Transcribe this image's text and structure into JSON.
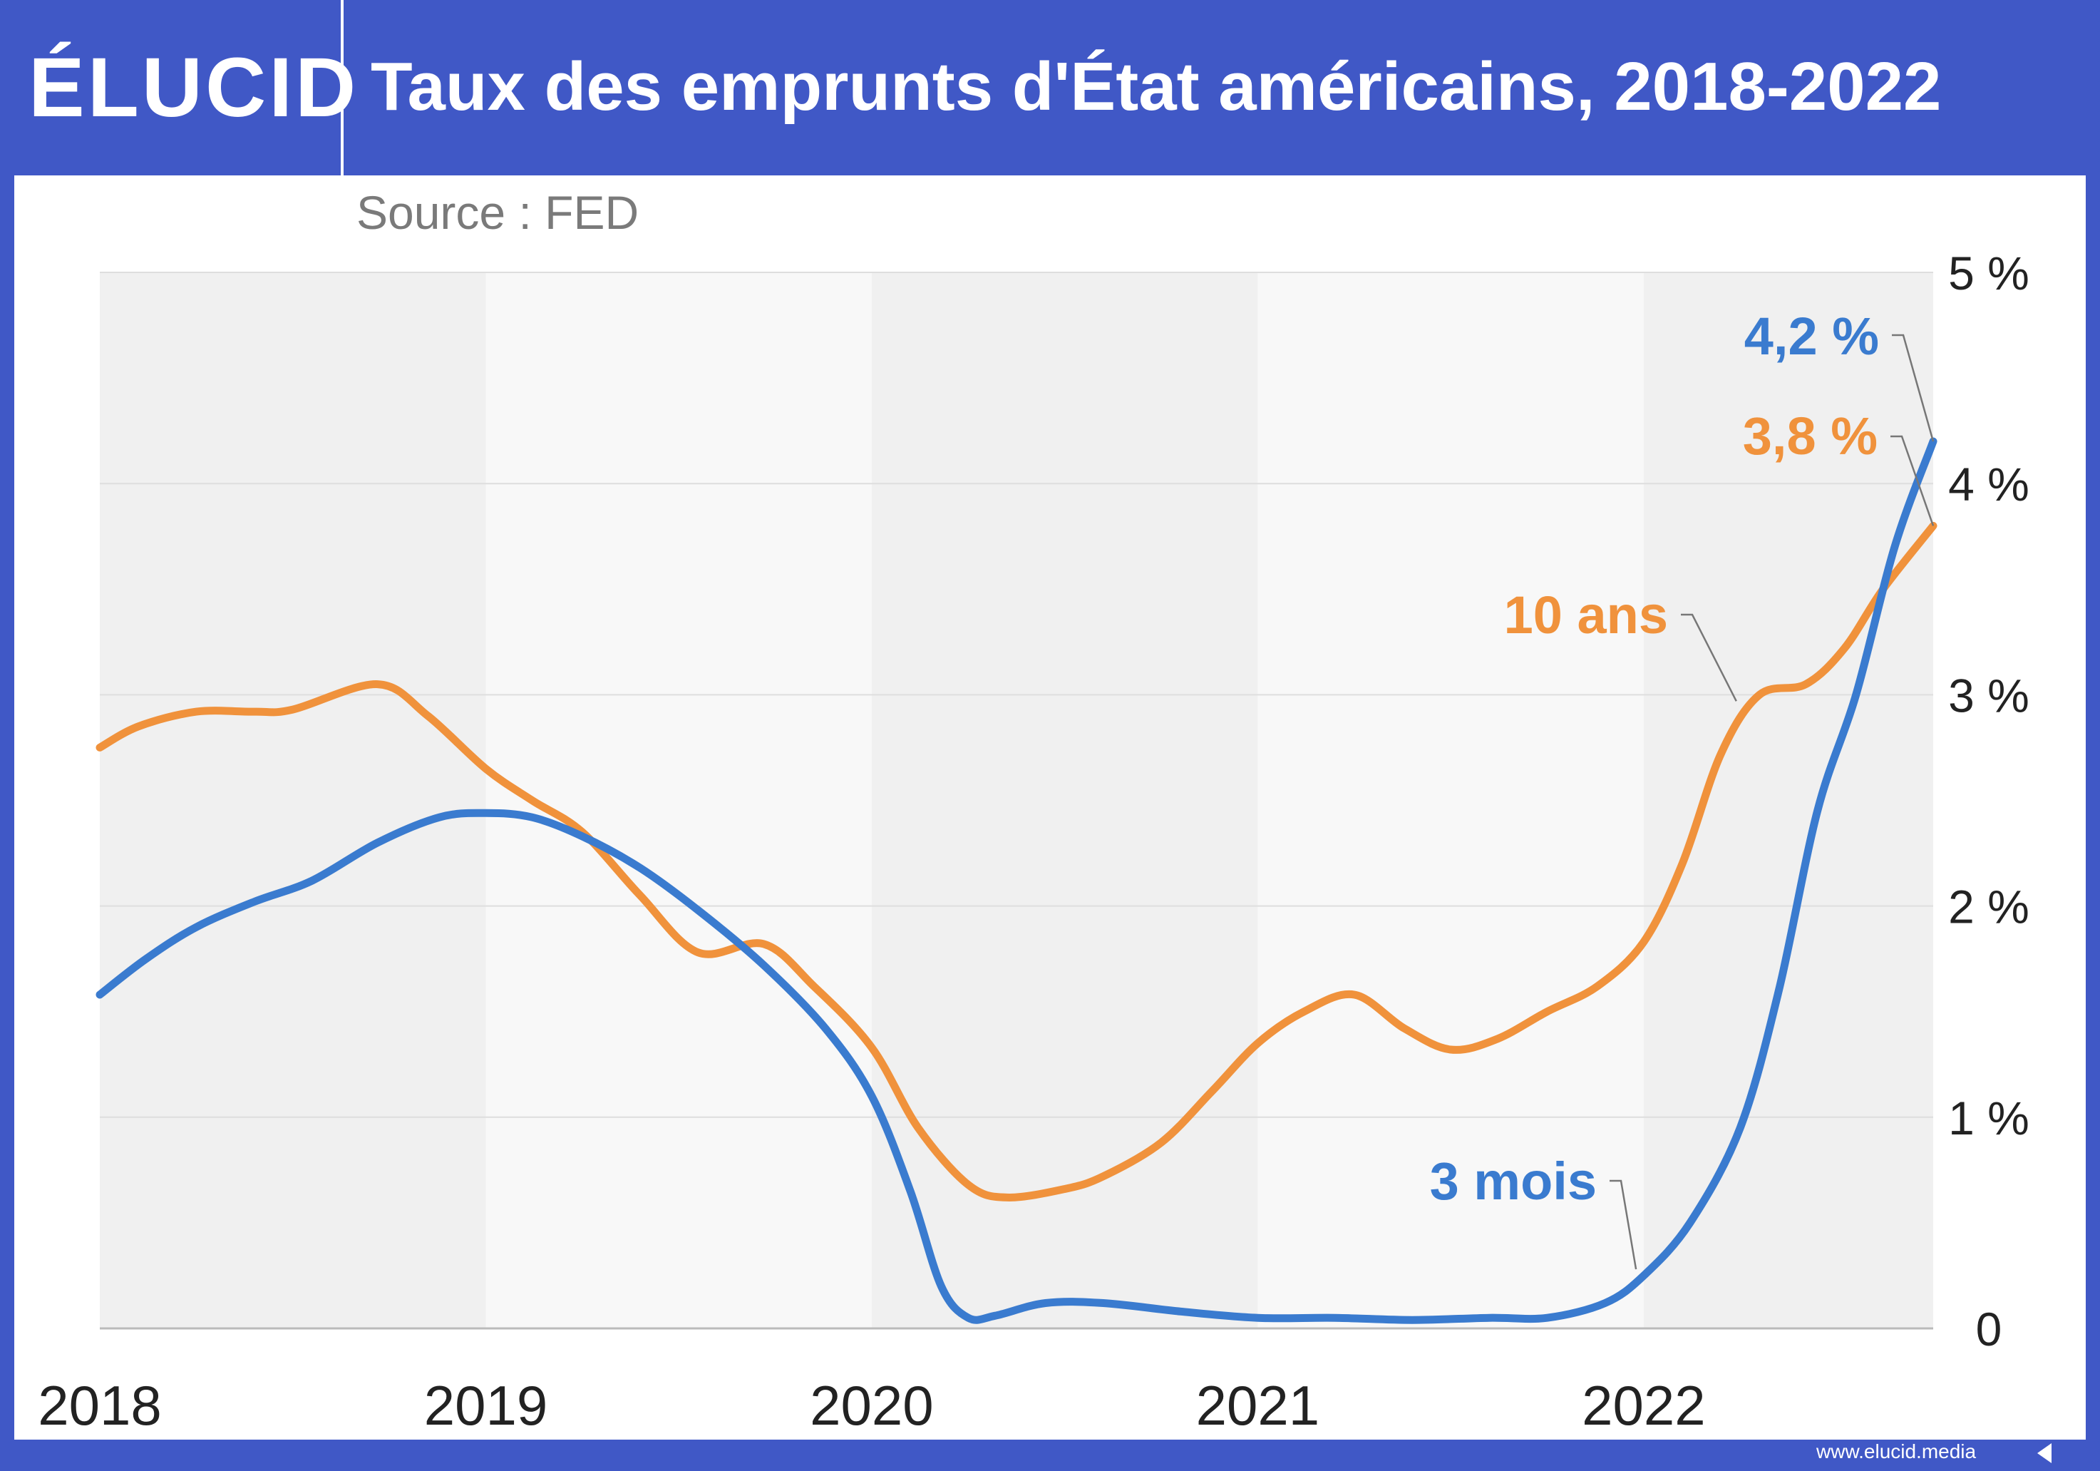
{
  "header": {
    "logo": "ÉLUCID",
    "title": "Taux des emprunts d'État américains, 2018-2022"
  },
  "footer": {
    "url": "www.elucid.media"
  },
  "colors": {
    "brand_blue": "#4058c6",
    "ten_year": "#f0923c",
    "three_month": "#3a7bcf"
  },
  "chart_data": {
    "type": "line",
    "title": "Taux des emprunts d'État américains, 2018-2022",
    "subtitle": "Source : FED",
    "xlabel": "",
    "ylabel": "",
    "xlim": [
      2018.0,
      2022.75
    ],
    "ylim": [
      0,
      5
    ],
    "x_ticks": [
      "2018",
      "2019",
      "2020",
      "2021",
      "2022"
    ],
    "y_ticks": [
      "0",
      "1 %",
      "2 %",
      "3 %",
      "4 %",
      "5 %"
    ],
    "grid": true,
    "series": [
      {
        "name": "10 ans",
        "color": "#f0923c",
        "x": [
          2018.0,
          2018.1,
          2018.25,
          2018.4,
          2018.5,
          2018.72,
          2018.85,
          2019.0,
          2019.12,
          2019.25,
          2019.4,
          2019.55,
          2019.72,
          2019.85,
          2020.0,
          2020.12,
          2020.25,
          2020.35,
          2020.5,
          2020.6,
          2020.75,
          2020.88,
          2021.0,
          2021.12,
          2021.25,
          2021.38,
          2021.5,
          2021.62,
          2021.75,
          2021.88,
          2022.0,
          2022.1,
          2022.2,
          2022.3,
          2022.42,
          2022.52,
          2022.62,
          2022.75
        ],
        "y": [
          2.75,
          2.85,
          2.92,
          2.92,
          2.93,
          3.05,
          2.9,
          2.65,
          2.5,
          2.35,
          2.05,
          1.78,
          1.82,
          1.62,
          1.33,
          0.95,
          0.68,
          0.62,
          0.66,
          0.72,
          0.88,
          1.12,
          1.35,
          1.5,
          1.58,
          1.42,
          1.32,
          1.37,
          1.5,
          1.62,
          1.83,
          2.2,
          2.72,
          3.0,
          3.05,
          3.22,
          3.5,
          3.8
        ]
      },
      {
        "name": "3 mois",
        "color": "#3a7bcf",
        "x": [
          2018.0,
          2018.12,
          2018.25,
          2018.4,
          2018.55,
          2018.72,
          2018.88,
          2019.0,
          2019.12,
          2019.25,
          2019.4,
          2019.55,
          2019.72,
          2019.88,
          2020.0,
          2020.1,
          2020.18,
          2020.25,
          2020.32,
          2020.45,
          2020.6,
          2020.8,
          2021.0,
          2021.2,
          2021.4,
          2021.6,
          2021.75,
          2021.9,
          2022.0,
          2022.12,
          2022.25,
          2022.35,
          2022.45,
          2022.55,
          2022.65,
          2022.75
        ],
        "y": [
          1.58,
          1.75,
          1.9,
          2.02,
          2.12,
          2.3,
          2.42,
          2.44,
          2.42,
          2.33,
          2.18,
          1.98,
          1.72,
          1.42,
          1.1,
          0.65,
          0.2,
          0.05,
          0.06,
          0.12,
          0.12,
          0.08,
          0.05,
          0.05,
          0.04,
          0.05,
          0.05,
          0.12,
          0.25,
          0.5,
          0.95,
          1.6,
          2.45,
          3.0,
          3.7,
          4.2
        ]
      }
    ],
    "annotations": [
      {
        "text": "10 ans",
        "color": "#f0923c",
        "series": "10 ans",
        "x": 2022.24,
        "y": 2.97
      },
      {
        "text": "3 mois",
        "color": "#3a7bcf",
        "series": "3 mois",
        "x": 2021.98,
        "y": 0.28
      },
      {
        "text": "4,2 %",
        "color": "#3a7bcf",
        "series": "3 mois",
        "x": 2022.75,
        "y": 4.2
      },
      {
        "text": "3,8 %",
        "color": "#f0923c",
        "series": "10 ans",
        "x": 2022.75,
        "y": 3.8
      }
    ]
  }
}
